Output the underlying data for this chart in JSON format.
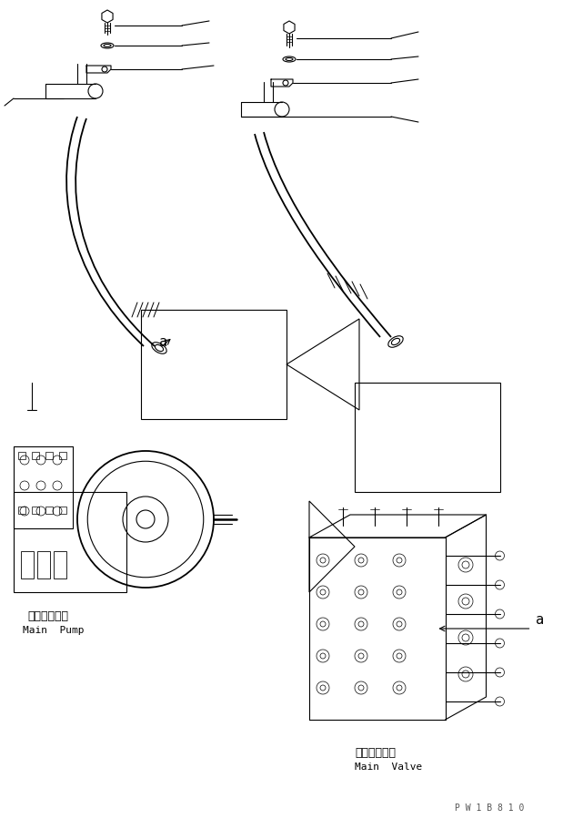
{
  "bg_color": "#ffffff",
  "line_color": "#000000",
  "title": "",
  "label_main_pump_ja": "メインポンプ",
  "label_main_pump_en": "Main  Pump",
  "label_main_valve_ja": "メインバルブ",
  "label_main_valve_en": "Main  Valve",
  "watermark": "P W 1 B 8 1 0",
  "label_a": "a",
  "figsize": [
    6.3,
    8.99
  ],
  "dpi": 100
}
